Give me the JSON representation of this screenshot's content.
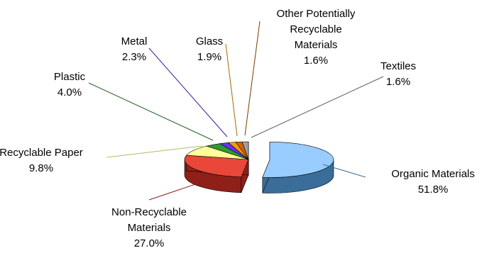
{
  "chart_data": {
    "type": "pie",
    "title": "",
    "exploded_slice": "Organic Materials",
    "three_d": true,
    "legend": "none",
    "slices": [
      {
        "label_lines": [
          "Organic Materials"
        ],
        "value_label": "51.8%",
        "value": 51.8,
        "color": "#99CCFF",
        "side_color": "#3A6D9A"
      },
      {
        "label_lines": [
          "Non-Recyclable",
          "Materials"
        ],
        "value_label": "27.0%",
        "value": 27.0,
        "color": "#E8473A",
        "side_color": "#8E2019"
      },
      {
        "label_lines": [
          "Recyclable Paper"
        ],
        "value_label": "9.8%",
        "value": 9.8,
        "color": "#FFFF99",
        "side_color": "#B8B860"
      },
      {
        "label_lines": [
          "Plastic"
        ],
        "value_label": "4.0%",
        "value": 4.0,
        "color": "#339933",
        "side_color": "#1C601C"
      },
      {
        "label_lines": [
          "Metal"
        ],
        "value_label": "2.3%",
        "value": 2.3,
        "color": "#6633FF",
        "side_color": "#3A1C9A"
      },
      {
        "label_lines": [
          "Glass"
        ],
        "value_label": "1.9%",
        "value": 1.9,
        "color": "#FF9900",
        "side_color": "#A86500"
      },
      {
        "label_lines": [
          "Other Potentially",
          "Recyclable",
          "Materials"
        ],
        "value_label": "1.6%",
        "value": 1.6,
        "color": "#CC6600",
        "side_color": "#7A3D00"
      },
      {
        "label_lines": [
          "Textiles"
        ],
        "value_label": "1.6%",
        "value": 1.6,
        "color": "#A0A0A0",
        "side_color": "#5E5E5E"
      }
    ]
  }
}
